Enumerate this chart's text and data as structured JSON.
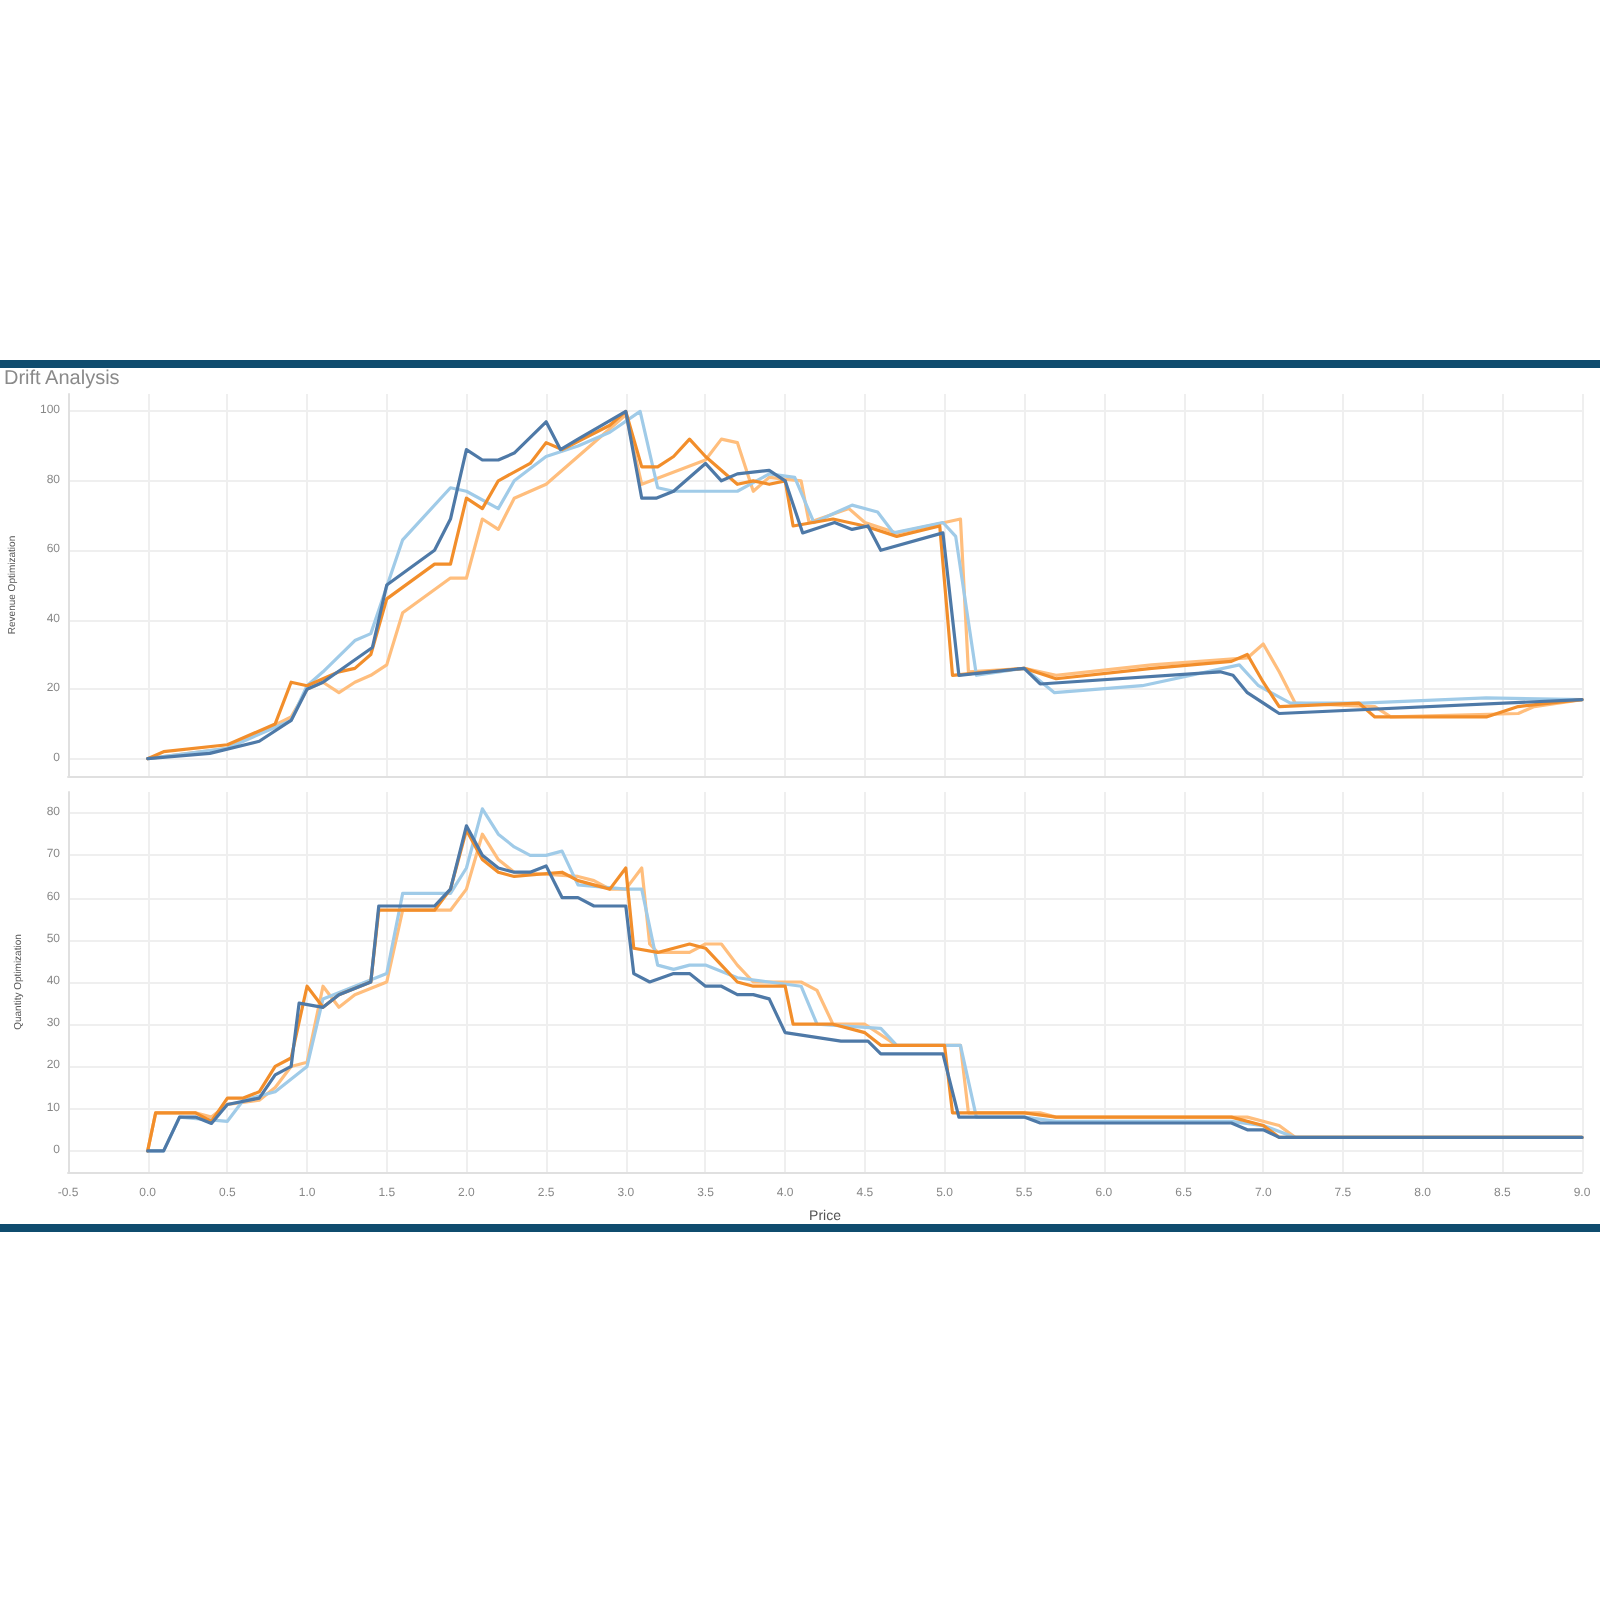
{
  "chart_data": [
    {
      "type": "line",
      "title": "Drift Analysis",
      "ylabel": "Revenue Optimization",
      "xlim": [
        -0.5,
        9.0
      ],
      "ylim": [
        -5,
        105
      ],
      "xticks": [
        -0.5,
        0,
        0.5,
        1,
        1.5,
        2,
        2.5,
        3,
        3.5,
        4,
        4.5,
        5,
        5.5,
        6,
        6.5,
        7,
        7.5,
        8,
        8.5,
        9
      ],
      "yticks": [
        0,
        20,
        40,
        60,
        80,
        100
      ],
      "tick_labels": "y",
      "grid": true,
      "marker": "none",
      "line_style": "solid",
      "series": [
        {
          "color": "#ffbe7d",
          "x": [
            0,
            0.5,
            0.9,
            1.0,
            1.1,
            1.2,
            1.3,
            1.4,
            1.5,
            1.6,
            1.9,
            2.0,
            2.1,
            2.2,
            2.3,
            2.5,
            2.7,
            2.9,
            3.0,
            3.1,
            3.5,
            3.6,
            3.7,
            3.8,
            3.9,
            4.1,
            4.15,
            4.4,
            4.5,
            4.7,
            5.0,
            5.1,
            5.15,
            5.5,
            5.7,
            6.3,
            6.9,
            7.0,
            7.1,
            7.2,
            7.7,
            7.8,
            8.6,
            8.7,
            9.0
          ],
          "values": [
            0,
            3,
            12,
            20,
            22,
            19,
            22,
            24,
            27,
            42,
            52,
            52,
            69,
            66,
            75,
            79,
            87,
            95,
            99,
            79,
            86,
            92,
            91,
            77,
            81,
            80,
            68,
            72,
            68,
            65,
            68,
            69,
            25,
            26,
            24,
            27,
            29,
            33,
            25,
            16,
            15,
            12,
            13,
            15,
            17
          ]
        },
        {
          "color": "#a0cbe8",
          "x": [
            0,
            0.5,
            0.9,
            1.0,
            1.1,
            1.3,
            1.4,
            1.6,
            1.9,
            2.0,
            2.2,
            2.3,
            2.5,
            2.7,
            2.9,
            3.09,
            3.2,
            3.3,
            3.7,
            3.9,
            4.06,
            4.18,
            4.42,
            4.58,
            4.68,
            4.99,
            5.07,
            5.2,
            5.5,
            5.69,
            6.24,
            6.85,
            6.97,
            7.17,
            7.62,
            8.4,
            9.0
          ],
          "values": [
            0,
            3,
            11,
            21,
            25,
            34,
            36,
            63,
            78,
            77,
            72,
            80,
            87,
            90,
            94,
            100,
            78,
            77,
            77,
            82,
            81,
            68,
            73,
            71,
            65,
            68,
            64,
            24,
            26,
            19,
            21,
            27,
            21,
            16,
            16,
            17.5,
            17
          ]
        },
        {
          "color": "#f28e2b",
          "x": [
            0,
            0.1,
            0.5,
            0.8,
            0.9,
            1.0,
            1.2,
            1.3,
            1.4,
            1.5,
            1.8,
            1.9,
            2.0,
            2.1,
            2.2,
            2.4,
            2.5,
            2.6,
            2.9,
            3.0,
            3.1,
            3.2,
            3.3,
            3.4,
            3.5,
            3.7,
            3.8,
            3.9,
            4.0,
            4.05,
            4.3,
            4.5,
            4.7,
            4.97,
            5.05,
            5.5,
            5.7,
            6.3,
            6.8,
            6.9,
            7.0,
            7.1,
            7.6,
            7.7,
            8.4,
            8.6,
            9.0
          ],
          "values": [
            0,
            2,
            4,
            10,
            22,
            21,
            25,
            26,
            30,
            46,
            56,
            56,
            75,
            72,
            80,
            85,
            91,
            89,
            96,
            100,
            84,
            84,
            87,
            92,
            87,
            79,
            80,
            79,
            80,
            67,
            69,
            67,
            64,
            67,
            24,
            26,
            23,
            26,
            28,
            30,
            22,
            15,
            16,
            12,
            12,
            15,
            17
          ]
        },
        {
          "color": "#4e79a7",
          "x": [
            0,
            0.39,
            0.7,
            0.9,
            1.0,
            1.1,
            1.41,
            1.5,
            1.8,
            1.9,
            2.0,
            2.1,
            2.2,
            2.3,
            2.5,
            2.59,
            2.7,
            3.0,
            3.1,
            3.19,
            3.3,
            3.5,
            3.6,
            3.7,
            3.9,
            4.0,
            4.11,
            4.31,
            4.42,
            4.52,
            4.6,
            4.99,
            5.09,
            5.5,
            5.6,
            6.73,
            6.81,
            6.9,
            7.1,
            9.0
          ],
          "values": [
            0,
            1.5,
            5,
            11,
            20,
            22,
            32,
            50,
            60,
            69,
            89,
            86,
            86,
            88,
            97,
            89,
            92,
            100,
            75,
            75,
            77,
            85,
            80,
            82,
            83,
            80,
            65,
            68,
            66,
            67,
            60,
            65,
            24,
            26,
            21.5,
            25,
            24,
            19,
            13,
            17
          ]
        }
      ]
    },
    {
      "type": "line",
      "xlabel": "Price",
      "ylabel": "Quantity Optimization",
      "xlim": [
        -0.5,
        9.0
      ],
      "ylim": [
        -5,
        85
      ],
      "xticks": [
        -0.5,
        {
          "value": 0,
          "label": "0.0"
        },
        0.5,
        {
          "value": 1,
          "label": "1.0"
        },
        1.5,
        {
          "value": 2,
          "label": "2.0"
        },
        2.5,
        {
          "value": 3,
          "label": "3.0"
        },
        3.5,
        {
          "value": 4,
          "label": "4.0"
        },
        4.5,
        {
          "value": 5,
          "label": "5.0"
        },
        5.5,
        {
          "value": 6,
          "label": "6.0"
        },
        6.5,
        {
          "value": 7,
          "label": "7.0"
        },
        7.5,
        {
          "value": 8,
          "label": "8.0"
        },
        8.5,
        {
          "value": 9,
          "label": "9.0"
        }
      ],
      "yticks": [
        0,
        10,
        20,
        30,
        40,
        50,
        60,
        70,
        80
      ],
      "grid": true,
      "marker": "none",
      "line_style": "solid",
      "series": [
        {
          "color": "#ffbe7d",
          "x": [
            0,
            0.05,
            0.3,
            0.4,
            0.5,
            0.7,
            0.8,
            0.9,
            1.0,
            1.1,
            1.2,
            1.3,
            1.5,
            1.6,
            1.9,
            2.0,
            2.1,
            2.2,
            2.3,
            2.7,
            2.8,
            2.9,
            3.0,
            3.1,
            3.15,
            3.2,
            3.4,
            3.5,
            3.6,
            3.7,
            3.8,
            4.1,
            4.2,
            4.3,
            4.5,
            4.7,
            5.1,
            5.15,
            5.6,
            5.7,
            6.9,
            7.1,
            7.2,
            9.0
          ],
          "values": [
            0,
            9,
            9,
            8,
            11,
            12,
            15,
            20,
            21,
            39,
            34,
            37,
            40,
            57,
            57,
            62,
            75,
            69,
            66,
            65,
            64,
            62,
            62,
            67,
            49,
            47,
            47,
            49,
            49,
            44,
            40,
            40,
            38,
            30,
            30,
            25,
            25,
            9,
            9,
            8,
            8,
            6,
            3.2,
            3.2
          ]
        },
        {
          "color": "#a0cbe8",
          "x": [
            0,
            0.1,
            0.2,
            0.5,
            0.6,
            0.8,
            1.0,
            1.1,
            1.5,
            1.6,
            1.9,
            2.0,
            2.1,
            2.2,
            2.3,
            2.4,
            2.5,
            2.6,
            2.7,
            3.0,
            3.1,
            3.2,
            3.3,
            3.4,
            3.5,
            3.7,
            3.9,
            4.1,
            4.2,
            4.6,
            4.7,
            5.1,
            5.2,
            5.5,
            5.7,
            6.8,
            7.0,
            7.2,
            9.0
          ],
          "values": [
            0,
            0,
            8,
            7,
            12,
            14,
            20,
            36,
            42,
            61,
            61,
            67,
            81,
            75,
            72,
            70,
            70,
            71,
            63,
            62,
            62,
            44,
            43,
            44,
            44,
            41,
            40,
            39,
            30,
            29,
            25,
            25,
            8,
            8,
            7,
            7,
            6,
            3.2,
            3.2
          ]
        },
        {
          "color": "#f28e2b",
          "x": [
            0,
            0.05,
            0.3,
            0.4,
            0.5,
            0.6,
            0.7,
            0.8,
            0.9,
            1.0,
            1.1,
            1.2,
            1.4,
            1.45,
            1.8,
            1.9,
            2.0,
            2.1,
            2.2,
            2.3,
            2.6,
            2.7,
            2.9,
            3.0,
            3.05,
            3.2,
            3.4,
            3.5,
            3.6,
            3.7,
            3.8,
            4.0,
            4.05,
            4.3,
            4.5,
            4.6,
            5.0,
            5.05,
            5.5,
            5.7,
            6.8,
            7.0,
            7.1,
            9.0
          ],
          "values": [
            0,
            9,
            9,
            7,
            12.5,
            12.5,
            14,
            20,
            22,
            39,
            34,
            37,
            40,
            57,
            57,
            62,
            76,
            69,
            66,
            65,
            66,
            64,
            62,
            67,
            48,
            47,
            49,
            48,
            44,
            40,
            39,
            39,
            30,
            30,
            28,
            25,
            25,
            9,
            9,
            8,
            8,
            6,
            3.2,
            3.2
          ]
        },
        {
          "color": "#4e79a7",
          "x": [
            0,
            0.1,
            0.2,
            0.3,
            0.4,
            0.5,
            0.7,
            0.8,
            0.9,
            0.95,
            1.1,
            1.2,
            1.4,
            1.45,
            1.8,
            1.9,
            2.0,
            2.1,
            2.2,
            2.3,
            2.4,
            2.5,
            2.6,
            2.7,
            2.8,
            3.0,
            3.05,
            3.15,
            3.3,
            3.4,
            3.5,
            3.6,
            3.7,
            3.8,
            3.9,
            4.0,
            4.35,
            4.52,
            4.6,
            4.99,
            5.09,
            5.5,
            5.6,
            6.8,
            6.9,
            7.0,
            7.1,
            9.0
          ],
          "values": [
            0,
            0,
            8,
            8,
            6.5,
            11,
            12.5,
            18,
            20,
            35,
            34,
            37,
            40,
            58,
            58,
            62,
            77,
            70,
            67,
            66,
            66,
            67.5,
            60,
            60,
            58,
            58,
            42,
            40,
            42,
            42,
            39,
            39,
            37,
            37,
            36,
            28,
            26,
            26,
            23,
            23,
            8,
            8,
            6.6,
            6.6,
            5,
            5,
            3.2,
            3.2
          ]
        }
      ]
    }
  ]
}
